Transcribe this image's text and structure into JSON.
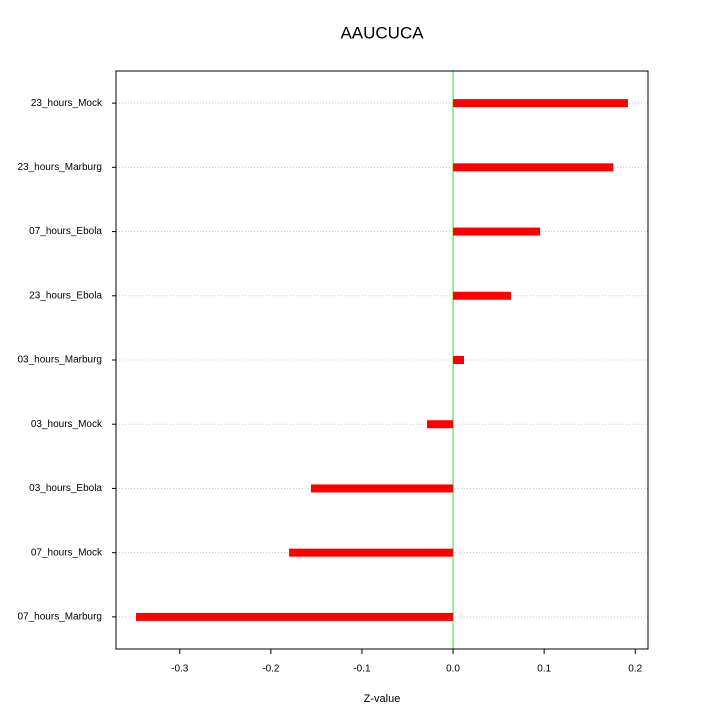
{
  "chart_data": {
    "type": "bar",
    "orientation": "horizontal",
    "title": "AAUCUCA",
    "x_label": "Z-value",
    "categories": [
      "23_hours_Mock",
      "23_hours_Marburg",
      "07_hours_Ebola",
      "23_hours_Ebola",
      "03_hours_Marburg",
      "03_hours_Mock",
      "03_hours_Ebola",
      "07_hours_Mock",
      "07_hours_Marburg"
    ],
    "values": [
      0.192,
      0.176,
      0.0956,
      0.0637,
      0.012,
      -0.0286,
      -0.156,
      -0.18,
      -0.348
    ],
    "color": "#ff0000",
    "xlim": [
      -0.37,
      0.214
    ],
    "xticks": [
      -0.3,
      -0.2,
      -0.1,
      {
        "value": 0,
        "label": "0.0"
      },
      0.1,
      0.2
    ],
    "reference_line": {
      "value": 0,
      "color": "#33dd33"
    },
    "grid": true
  }
}
